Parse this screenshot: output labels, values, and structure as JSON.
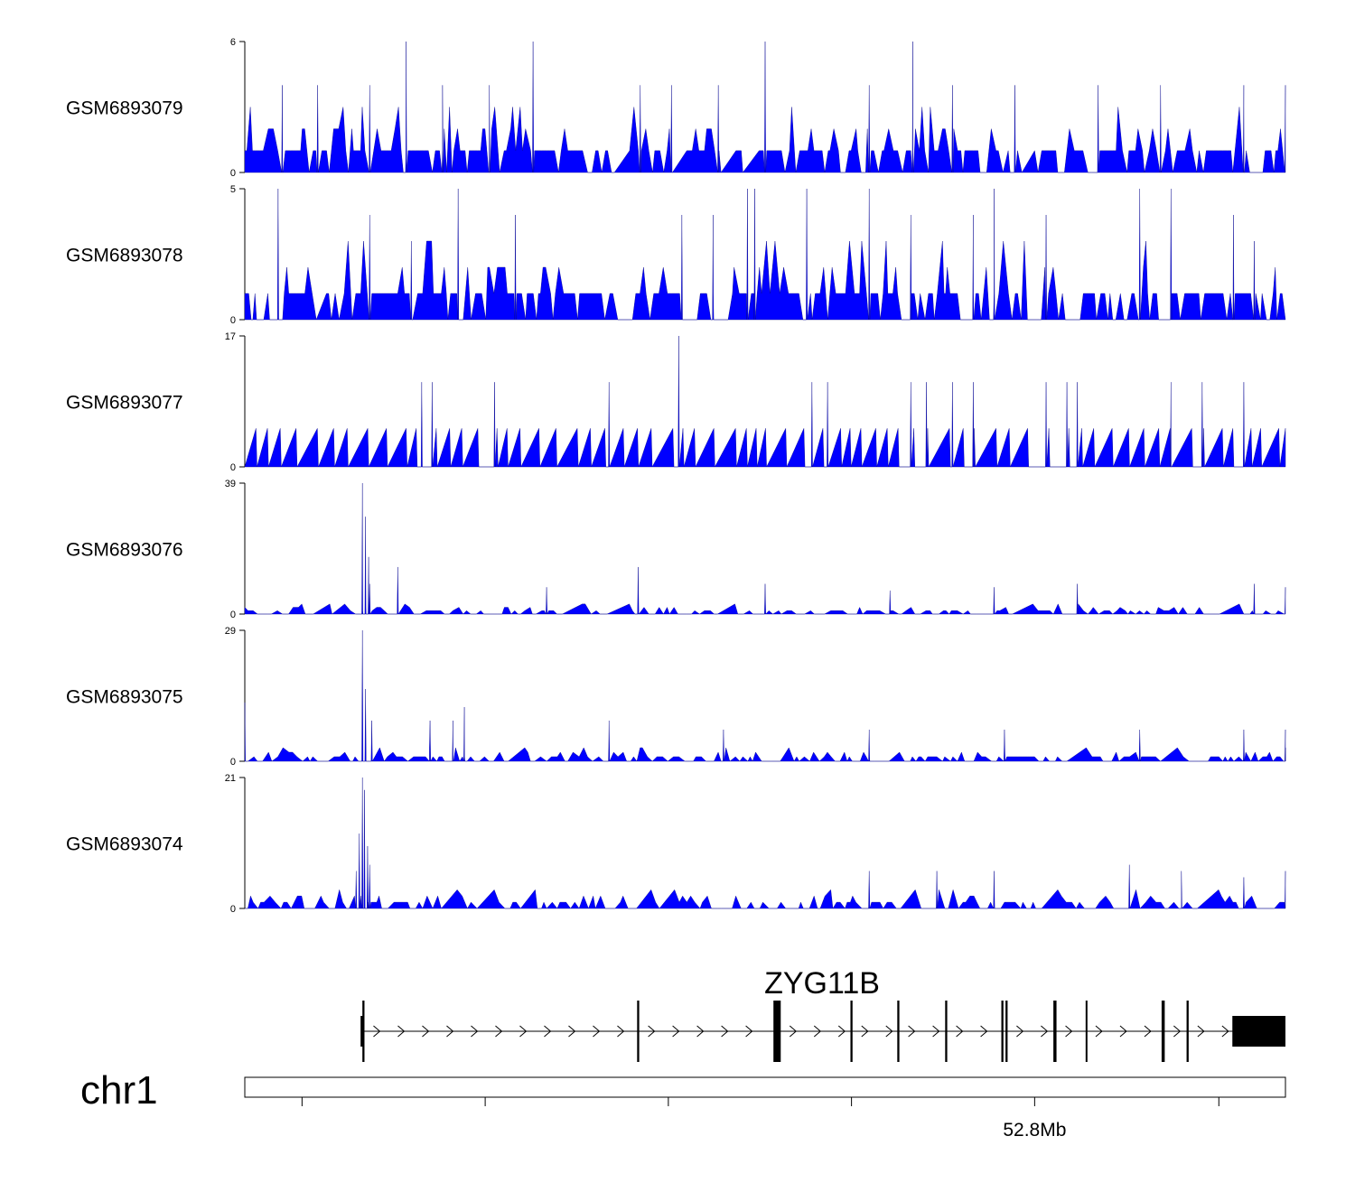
{
  "chart_data": {
    "type": "area",
    "title": "",
    "series_color": "#0000ff",
    "tracks": [
      {
        "name": "GSM6893079",
        "ylim": [
          0,
          6
        ],
        "max_label": "6",
        "min_label": "0",
        "style": "dense",
        "seed": 79,
        "peaks": [
          [
            0.155,
            6
          ],
          [
            0.277,
            6
          ],
          [
            0.5,
            6
          ],
          [
            0.642,
            6
          ],
          [
            0.036,
            4
          ],
          [
            0.07,
            4
          ],
          [
            0.12,
            4
          ],
          [
            0.19,
            4
          ],
          [
            0.235,
            4
          ],
          [
            0.38,
            4
          ],
          [
            0.41,
            4
          ],
          [
            0.455,
            4
          ],
          [
            0.6,
            4
          ],
          [
            0.68,
            4
          ],
          [
            0.74,
            4
          ],
          [
            0.82,
            4
          ],
          [
            0.88,
            4
          ],
          [
            0.96,
            4
          ],
          [
            1.0,
            4
          ]
        ]
      },
      {
        "name": "GSM6893078",
        "ylim": [
          0,
          5
        ],
        "max_label": "5",
        "min_label": "0",
        "style": "dense",
        "seed": 78,
        "peaks": [
          [
            0.032,
            5
          ],
          [
            0.205,
            5
          ],
          [
            0.483,
            5
          ],
          [
            0.49,
            5
          ],
          [
            0.54,
            5
          ],
          [
            0.6,
            5
          ],
          [
            0.72,
            5
          ],
          [
            0.86,
            5
          ],
          [
            0.89,
            5
          ],
          [
            0.12,
            4
          ],
          [
            0.16,
            3
          ],
          [
            0.26,
            4
          ],
          [
            0.42,
            4
          ],
          [
            0.45,
            4
          ],
          [
            0.64,
            4
          ],
          [
            0.7,
            4
          ],
          [
            0.77,
            4
          ],
          [
            0.95,
            4
          ],
          [
            0.97,
            3
          ]
        ]
      },
      {
        "name": "GSM6893077",
        "ylim": [
          0,
          17
        ],
        "max_label": "17",
        "min_label": "0",
        "style": "spiky",
        "seed": 77,
        "peaks": [
          [
            0.417,
            17
          ],
          [
            0.17,
            11
          ],
          [
            0.18,
            11
          ],
          [
            0.24,
            11
          ],
          [
            0.35,
            11
          ],
          [
            0.545,
            11
          ],
          [
            0.56,
            11
          ],
          [
            0.64,
            11
          ],
          [
            0.655,
            11
          ],
          [
            0.68,
            11
          ],
          [
            0.7,
            11
          ],
          [
            0.77,
            11
          ],
          [
            0.79,
            11
          ],
          [
            0.8,
            11
          ],
          [
            0.89,
            11
          ],
          [
            0.92,
            11
          ],
          [
            0.96,
            11
          ]
        ]
      },
      {
        "name": "GSM6893076",
        "ylim": [
          0,
          39
        ],
        "max_label": "39",
        "min_label": "0",
        "style": "sparse",
        "seed": 76,
        "peaks": [
          [
            0.113,
            39
          ],
          [
            0.116,
            29
          ],
          [
            0.119,
            17
          ],
          [
            0.147,
            14
          ],
          [
            0.12,
            9
          ],
          [
            0.378,
            14
          ],
          [
            0.29,
            8
          ],
          [
            0.5,
            9
          ],
          [
            0.62,
            7
          ],
          [
            0.72,
            8
          ],
          [
            0.8,
            9
          ],
          [
            0.97,
            9
          ],
          [
            1.0,
            8
          ]
        ]
      },
      {
        "name": "GSM6893075",
        "ylim": [
          0,
          29
        ],
        "max_label": "29",
        "min_label": "0",
        "style": "sparse",
        "seed": 75,
        "peaks": [
          [
            0.113,
            29
          ],
          [
            0.116,
            16
          ],
          [
            0.0,
            13
          ],
          [
            0.211,
            12
          ],
          [
            0.122,
            9
          ],
          [
            0.178,
            9
          ],
          [
            0.2,
            9
          ],
          [
            0.35,
            9
          ],
          [
            0.46,
            7
          ],
          [
            0.6,
            7
          ],
          [
            0.73,
            7
          ],
          [
            0.86,
            7
          ],
          [
            0.96,
            7
          ],
          [
            1.0,
            7
          ]
        ]
      },
      {
        "name": "GSM6893074",
        "ylim": [
          0,
          21
        ],
        "max_label": "21",
        "min_label": "0",
        "style": "sparse",
        "seed": 74,
        "peaks": [
          [
            0.113,
            21
          ],
          [
            0.115,
            19
          ],
          [
            0.11,
            12
          ],
          [
            0.118,
            10
          ],
          [
            0.12,
            7
          ],
          [
            0.107,
            6
          ],
          [
            0.6,
            6
          ],
          [
            0.665,
            6
          ],
          [
            0.72,
            6
          ],
          [
            0.85,
            7
          ],
          [
            0.9,
            6
          ],
          [
            0.96,
            5
          ],
          [
            1.0,
            6
          ]
        ]
      }
    ],
    "gene": {
      "name": "ZYG11B",
      "strand": "+",
      "exons": [
        {
          "pos": 0.113,
          "width": 0.002,
          "kind": "thin"
        },
        {
          "pos": 0.377,
          "width": 0.002,
          "kind": "thin"
        },
        {
          "pos": 0.508,
          "width": 0.007,
          "kind": "thick"
        },
        {
          "pos": 0.582,
          "width": 0.002,
          "kind": "thin"
        },
        {
          "pos": 0.627,
          "width": 0.002,
          "kind": "thin"
        },
        {
          "pos": 0.673,
          "width": 0.002,
          "kind": "thin"
        },
        {
          "pos": 0.727,
          "width": 0.002,
          "kind": "thin"
        },
        {
          "pos": 0.731,
          "width": 0.002,
          "kind": "thin"
        },
        {
          "pos": 0.777,
          "width": 0.003,
          "kind": "thin"
        },
        {
          "pos": 0.808,
          "width": 0.001,
          "kind": "thin"
        },
        {
          "pos": 0.881,
          "width": 0.003,
          "kind": "thin"
        },
        {
          "pos": 0.905,
          "width": 0.002,
          "kind": "thin"
        },
        {
          "pos": 0.949,
          "width": 0.051,
          "kind": "utr"
        }
      ]
    },
    "ideogram": {
      "chrom": "chr1"
    },
    "axis": {
      "ticks": [
        0.055,
        0.231,
        0.407,
        0.583,
        0.759,
        0.936
      ],
      "major_tick": 0.759,
      "major_label": "52.8Mb"
    }
  }
}
